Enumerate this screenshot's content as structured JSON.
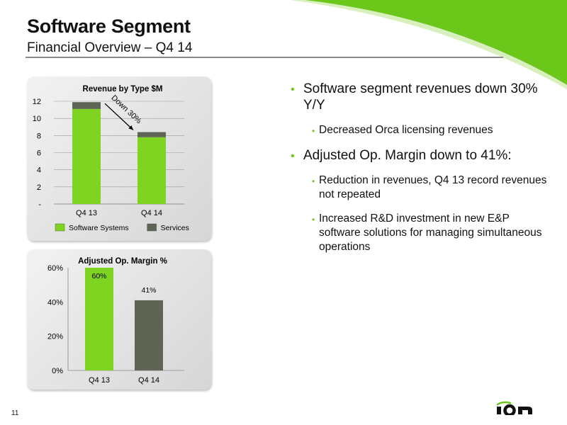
{
  "slide": {
    "title": "Software Segment",
    "subtitle": "Financial Overview – Q4 14",
    "page_number": "11",
    "logo_text": "ION"
  },
  "colors": {
    "accent_green": "#6cc71b",
    "bar_green": "#7fd321",
    "bar_gray": "#5f6554"
  },
  "bullets": [
    {
      "level": 1,
      "text": "Software segment revenues down 30% Y/Y"
    },
    {
      "level": 2,
      "text": "Decreased Orca licensing revenues"
    },
    {
      "level": 1,
      "text": "Adjusted Op. Margin down to 41%:"
    },
    {
      "level": 2,
      "text": "Reduction in revenues, Q4 13 record revenues not repeated"
    },
    {
      "level": 2,
      "text": "Increased R&D investment in new E&P software solutions for managing simultaneous operations"
    }
  ],
  "chart_data": [
    {
      "type": "bar",
      "stacked": true,
      "title": "Revenue by Type $M",
      "categories": [
        "Q4 13",
        "Q4 14"
      ],
      "series": [
        {
          "name": "Software Systems",
          "values": [
            11.1,
            7.8
          ],
          "color": "#7fd321"
        },
        {
          "name": "Services",
          "values": [
            0.8,
            0.6
          ],
          "color": "#5f6554"
        }
      ],
      "ylim": [
        0,
        12
      ],
      "yticks": [
        0,
        2,
        4,
        6,
        8,
        10,
        12
      ],
      "ytick_labels": [
        "-",
        "2",
        "4",
        "6",
        "8",
        "10",
        "12"
      ],
      "grid": true,
      "legend": "bottom",
      "annotation": "Down 30%"
    },
    {
      "type": "bar",
      "title": "Adjusted Op. Margin %",
      "categories": [
        "Q4 13",
        "Q4 14"
      ],
      "values": [
        60,
        41
      ],
      "data_labels": [
        "60%",
        "41%"
      ],
      "bar_colors": [
        "#7fd321",
        "#5f6554"
      ],
      "ylim": [
        0,
        60
      ],
      "yticks": [
        0,
        20,
        40,
        60
      ],
      "ytick_labels": [
        "0%",
        "20%",
        "40%",
        "60%"
      ],
      "grid": false,
      "legend": "none"
    }
  ]
}
